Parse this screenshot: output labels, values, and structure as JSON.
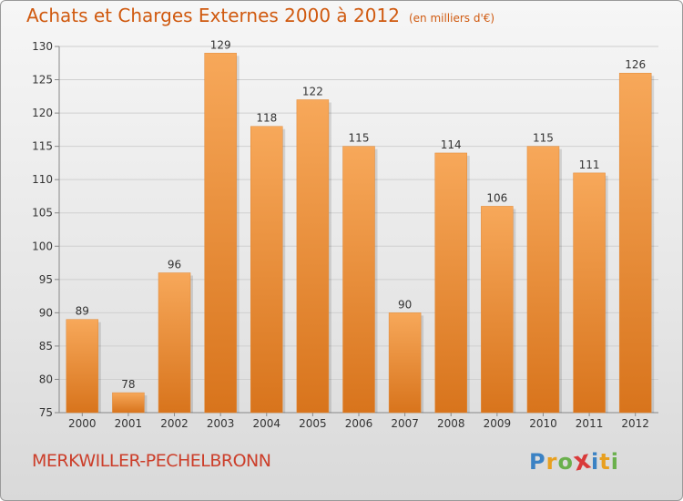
{
  "header": {
    "title": "Achats et Charges Externes 2000 à 2012",
    "unit": "(en milliers d'€)"
  },
  "footer": {
    "commune": "MERKWILLER-PECHELBRONN",
    "logo_letters": [
      "P",
      "r",
      "o",
      "x",
      "i",
      "t",
      "i"
    ],
    "logo_colors": [
      "#3b82c4",
      "#e8a020",
      "#6ab04c",
      "#d93a3a",
      "#3b82c4",
      "#e8a020",
      "#6ab04c"
    ]
  },
  "colors": {
    "bar_light": "#f7a85a",
    "bar_dark": "#d8741c",
    "title": "#d05a10",
    "commune": "#cc3e2a"
  },
  "chart_data": {
    "type": "bar",
    "categories": [
      "2000",
      "2001",
      "2002",
      "2003",
      "2004",
      "2005",
      "2006",
      "2007",
      "2008",
      "2009",
      "2010",
      "2011",
      "2012"
    ],
    "values": [
      89,
      78,
      96,
      129,
      118,
      122,
      115,
      90,
      114,
      106,
      115,
      111,
      126
    ],
    "ylim": [
      75,
      130
    ],
    "yticks": [
      75,
      80,
      85,
      90,
      95,
      100,
      105,
      110,
      115,
      120,
      125,
      130
    ],
    "grid": true
  }
}
